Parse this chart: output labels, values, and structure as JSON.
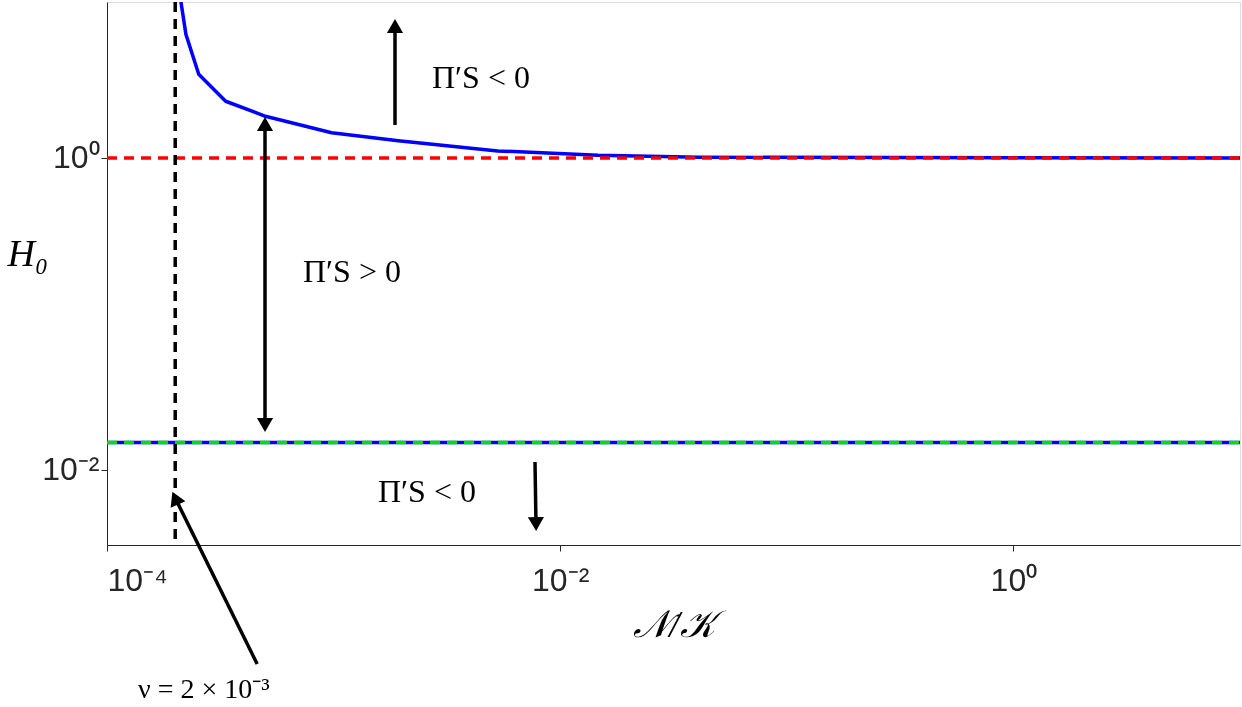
{
  "chart_data": {
    "type": "line",
    "xlabel": "𝒩/𝒦",
    "ylabel": "H₀",
    "log": "xy",
    "xlim": [
      0.0001,
      10
    ],
    "ylim": [
      0.0033,
      10
    ],
    "xticks": [
      {
        "value": 0.0001,
        "label": "10⁻⁴"
      },
      {
        "value": 0.01,
        "label": "10⁻²"
      },
      {
        "value": 1,
        "label": "10⁰"
      }
    ],
    "yticks": [
      {
        "value": 0.01,
        "label": "10⁻²"
      },
      {
        "value": 1,
        "label": "10⁰"
      }
    ],
    "grid": false,
    "line_style": "solid",
    "marker": "none",
    "series": [
      {
        "color": "#0000ff",
        "x": [
          0.000212,
          0.000223,
          0.000254,
          0.000334,
          0.0005,
          0.00098,
          0.00193,
          0.0053,
          0.0147,
          0.041,
          10
        ],
        "values": [
          10,
          6.2,
          3.44,
          2.31,
          1.85,
          1.45,
          1.29,
          1.11,
          1.04,
          1.01,
          1.0
        ]
      }
    ],
    "ref_lines": [
      {
        "axis": "y",
        "value": 1,
        "color": "#ff0000",
        "line_style": "dashed"
      },
      {
        "axis": "y",
        "value": 0.015,
        "color": "#0000ff",
        "line_style": "solid"
      },
      {
        "axis": "y",
        "value": 0.015,
        "color": "#00e000",
        "line_style": "dashed"
      },
      {
        "axis": "x",
        "value": 0.0002,
        "color": "#000000",
        "line_style": "dashed"
      }
    ],
    "annotations": [
      "Π′S < 0",
      "Π′S > 0",
      "Π′S < 0",
      {
        "text": "ν = 2 × 10⁻³",
        "x": 0.0002,
        "y": 0.0066
      }
    ]
  }
}
